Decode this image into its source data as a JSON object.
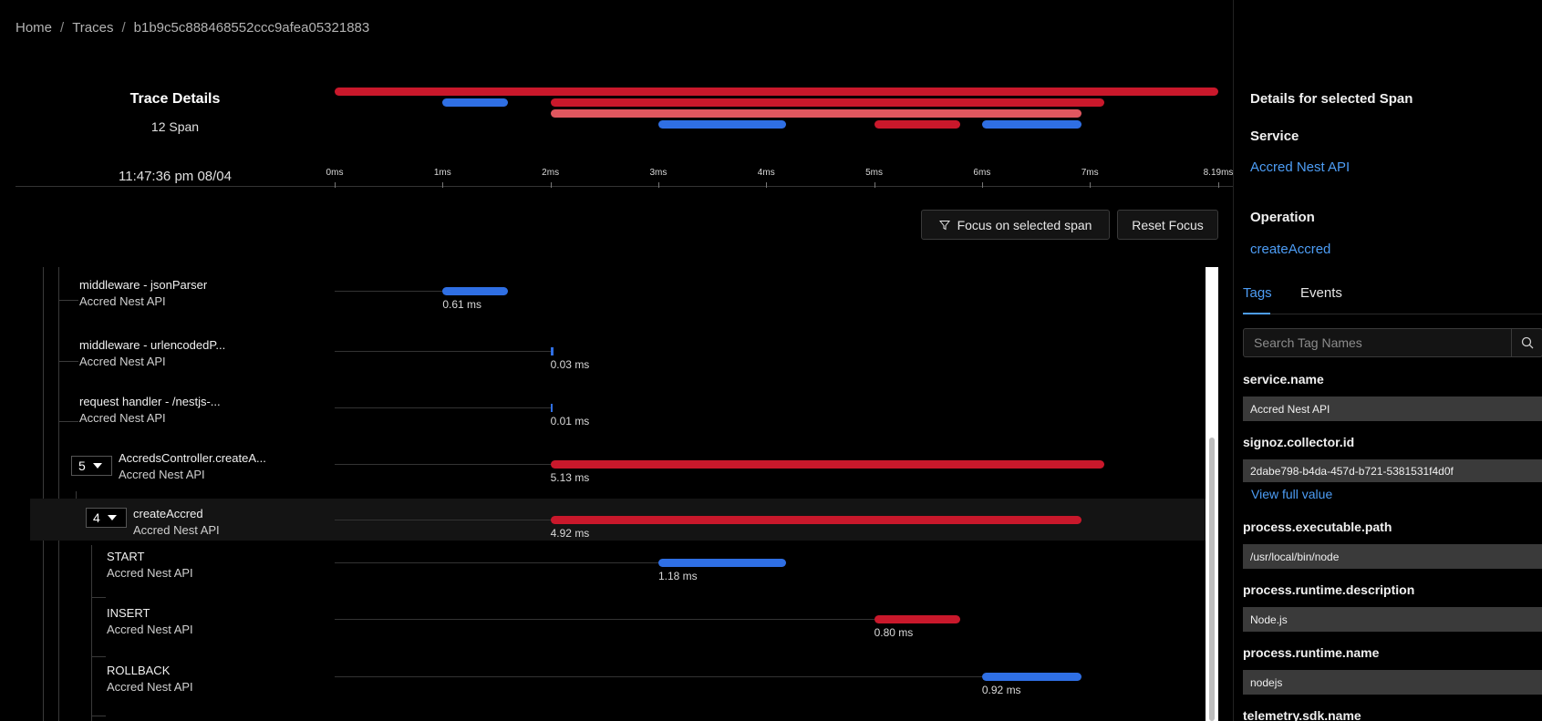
{
  "breadcrumb": {
    "home": "Home",
    "traces": "Traces",
    "trace_id": "b1b9c5c888468552ccc9afea05321883",
    "separator": "/"
  },
  "summary": {
    "title": "Trace Details",
    "span_count": "12 Span",
    "start_time": "11:47:36 pm 08/04"
  },
  "colors": {
    "red": "#c9182b",
    "light_red": "#e0575f",
    "blue": "#2f6fe4",
    "link": "#4d9df5"
  },
  "overview_bars": [
    {
      "start": 0,
      "end": 8.19,
      "color": "red"
    },
    {
      "start": 1.0,
      "end": 1.61,
      "color": "blue"
    },
    {
      "start": 2.0,
      "end": 7.13,
      "color": "red"
    },
    {
      "start": 2.0,
      "end": 6.92,
      "color": "light_red"
    },
    {
      "start": 3.0,
      "end": 4.18,
      "color": "blue"
    },
    {
      "start": 5.0,
      "end": 5.8,
      "color": "red"
    },
    {
      "start": 6.0,
      "end": 6.92,
      "color": "blue"
    }
  ],
  "axis": {
    "max": 8.19,
    "ticks": [
      {
        "value": 0,
        "label": "0ms"
      },
      {
        "value": 1,
        "label": "1ms"
      },
      {
        "value": 2,
        "label": "2ms"
      },
      {
        "value": 3,
        "label": "3ms"
      },
      {
        "value": 4,
        "label": "4ms"
      },
      {
        "value": 5,
        "label": "5ms"
      },
      {
        "value": 6,
        "label": "6ms"
      },
      {
        "value": 7,
        "label": "7ms"
      },
      {
        "value": 8.19,
        "label": "8.19ms"
      }
    ]
  },
  "actions": {
    "focus_label": "Focus on selected span",
    "reset_label": "Reset Focus"
  },
  "spans": [
    {
      "name": "middleware - jsonParser",
      "service": "Accred Nest API",
      "start": 1.0,
      "end": 1.61,
      "duration": "0.61 ms",
      "color": "blue"
    },
    {
      "name": "middleware - urlencodedP...",
      "service": "Accred Nest API",
      "start": 2.0,
      "end": 2.03,
      "duration": "0.03 ms",
      "color": "blue"
    },
    {
      "name": "request handler - /nestjs-...",
      "service": "Accred Nest API",
      "start": 2.0,
      "end": 2.01,
      "duration": "0.01 ms",
      "color": "blue"
    },
    {
      "name": "AccredsController.createA...",
      "service": "Accred Nest API",
      "start": 2.0,
      "end": 7.13,
      "duration": "5.13 ms",
      "color": "red",
      "children_count": "5"
    },
    {
      "name": "createAccred",
      "service": "Accred Nest API",
      "start": 2.0,
      "end": 6.92,
      "duration": "4.92 ms",
      "color": "red",
      "children_count": "4",
      "selected": true
    },
    {
      "name": "START",
      "service": "Accred Nest API",
      "start": 3.0,
      "end": 4.18,
      "duration": "1.18 ms",
      "color": "blue"
    },
    {
      "name": "INSERT",
      "service": "Accred Nest API",
      "start": 5.0,
      "end": 5.8,
      "duration": "0.80 ms",
      "color": "red"
    },
    {
      "name": "ROLLBACK",
      "service": "Accred Nest API",
      "start": 6.0,
      "end": 6.92,
      "duration": "0.92 ms",
      "color": "blue"
    }
  ],
  "details": {
    "header": "Details for selected Span",
    "service_label": "Service",
    "service_value": "Accred Nest API",
    "operation_label": "Operation",
    "operation_value": "createAccred",
    "tabs": [
      "Tags",
      "Events"
    ],
    "active_tab": "Tags",
    "search_placeholder": "Search Tag Names",
    "view_full_label": "View full value",
    "tags": [
      {
        "key": "service.name",
        "value": "Accred Nest API"
      },
      {
        "key": "signoz.collector.id",
        "value": "2dabe798-b4da-457d-b721-5381531f4d0f"
      },
      {
        "key": "process.executable.path",
        "value": "/usr/local/bin/node"
      },
      {
        "key": "process.runtime.description",
        "value": "Node.js"
      },
      {
        "key": "process.runtime.name",
        "value": "nodejs"
      },
      {
        "key": "telemetry.sdk.name",
        "value": ""
      }
    ]
  }
}
